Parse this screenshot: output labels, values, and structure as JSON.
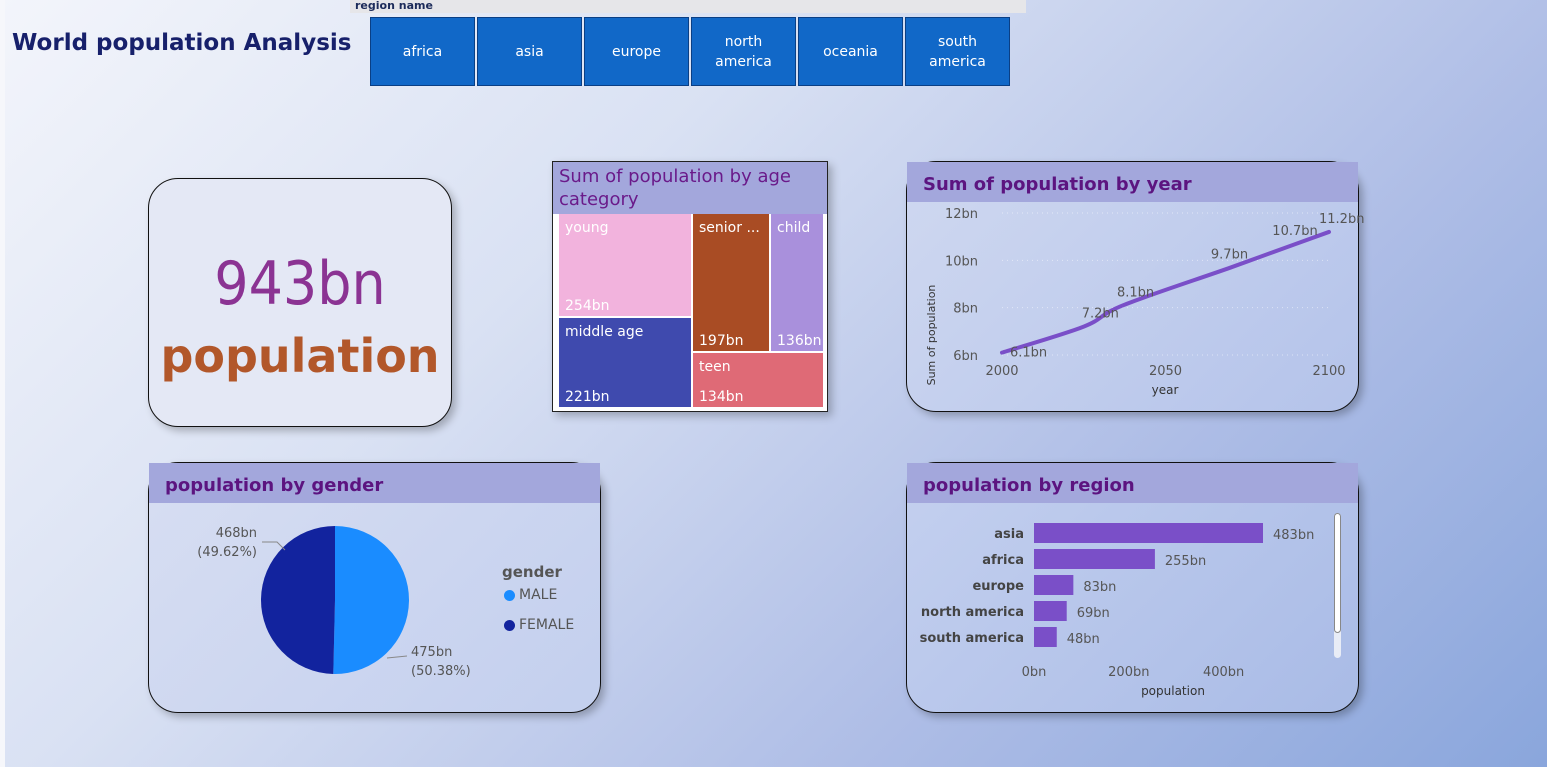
{
  "page": {
    "title": "World population Analysis"
  },
  "slicer": {
    "label": "region name",
    "options": [
      "africa",
      "asia",
      "europe",
      "north america",
      "oceania",
      "south america"
    ]
  },
  "kpi": {
    "value": "943bn",
    "label": "population"
  },
  "treemap": {
    "title": "Sum of population by age category",
    "cells": [
      {
        "name": "young",
        "value": "254bn",
        "color": "#f2b3dd"
      },
      {
        "name": "middle age",
        "value": "221bn",
        "color": "#3f4aae"
      },
      {
        "name": "senior ...",
        "value": "197bn",
        "color": "#a94c24"
      },
      {
        "name": "child",
        "value": "136bn",
        "color": "#a990dc"
      },
      {
        "name": "teen",
        "value": "134bn",
        "color": "#df6a76"
      }
    ]
  },
  "chart_data": [
    {
      "type": "line",
      "title": "Sum of population by year",
      "xlabel": "year",
      "ylabel": "Sum of population",
      "x": [
        2000,
        2025,
        2037,
        2070,
        2090,
        2100
      ],
      "y": [
        6.1,
        7.2,
        8.1,
        9.7,
        10.7,
        11.2
      ],
      "point_labels": [
        "6.1bn",
        "7.2bn",
        "8.1bn",
        "9.7bn",
        "10.7bn",
        "11.2bn"
      ],
      "xlim": [
        2000,
        2100
      ],
      "ylim": [
        6,
        12
      ],
      "xticks": [
        "2000",
        "2050",
        "2100"
      ],
      "yticks": [
        "6bn",
        "8bn",
        "10bn",
        "12bn"
      ],
      "color": "#7a4fc8"
    },
    {
      "type": "pie",
      "title": "population by gender",
      "legend_title": "gender",
      "categories": [
        "MALE",
        "FEMALE"
      ],
      "values": [
        475,
        468
      ],
      "labels": [
        "475bn",
        "468bn"
      ],
      "percents": [
        "(50.38%)",
        "(49.62%)"
      ],
      "colors": [
        "#1a8cff",
        "#12239e"
      ]
    },
    {
      "type": "bar",
      "title": "population by region",
      "xlabel": "population",
      "categories": [
        "asia",
        "africa",
        "europe",
        "north america",
        "south america"
      ],
      "values": [
        483,
        255,
        83,
        69,
        48
      ],
      "labels": [
        "483bn",
        "255bn",
        "83bn",
        "69bn",
        "48bn"
      ],
      "xticks": [
        "0bn",
        "200bn",
        "400bn"
      ],
      "xlim": [
        0,
        483
      ],
      "color": "#7a4fc8"
    }
  ]
}
